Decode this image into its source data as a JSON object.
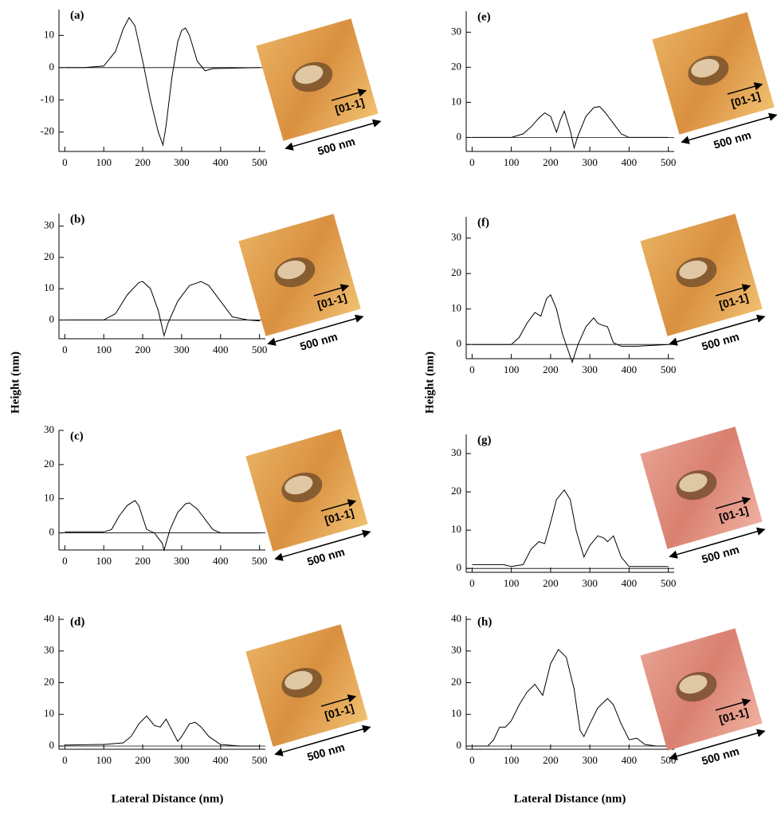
{
  "chart_data": [
    {
      "type": "line",
      "panel_label": "(a)",
      "direction_label": "[01-1]",
      "scale_label": "500 nm",
      "color": "#000000",
      "x": [
        0,
        50,
        100,
        130,
        150,
        165,
        180,
        200,
        220,
        240,
        252,
        260,
        275,
        290,
        300,
        310,
        320,
        340,
        360,
        380,
        420,
        500
      ],
      "values": [
        0,
        0,
        0.5,
        5,
        12,
        15.5,
        13,
        2,
        -10,
        -20,
        -24,
        -18,
        -3,
        8,
        11.5,
        12.3,
        10,
        2,
        -1,
        -0.3,
        -0.2,
        0
      ],
      "xlim": [
        -15,
        515
      ],
      "ylim": [
        -26,
        18
      ],
      "xticks": [
        0,
        100,
        200,
        300,
        400,
        500
      ],
      "yticks": [
        -20,
        -10,
        0,
        10
      ]
    },
    {
      "type": "line",
      "panel_label": "(b)",
      "direction_label": "[01-1]",
      "scale_label": "500 nm",
      "color": "#000000",
      "x": [
        0,
        100,
        130,
        160,
        190,
        200,
        220,
        240,
        255,
        265,
        290,
        320,
        350,
        370,
        400,
        430,
        470,
        500
      ],
      "values": [
        0,
        0,
        2,
        8,
        12,
        12.3,
        10,
        3,
        -5,
        -1,
        6,
        11,
        12.3,
        11,
        6,
        1,
        0,
        -0.3
      ],
      "xlim": [
        -15,
        515
      ],
      "ylim": [
        -6,
        34
      ],
      "xticks": [
        0,
        100,
        200,
        300,
        400,
        500
      ],
      "yticks": [
        0,
        10,
        20,
        30
      ]
    },
    {
      "type": "line",
      "panel_label": "(c)",
      "direction_label": "[01-1]",
      "scale_label": "500 nm",
      "color": "#000000",
      "x": [
        0,
        100,
        120,
        140,
        160,
        180,
        190,
        210,
        230,
        250,
        255,
        270,
        290,
        310,
        320,
        340,
        360,
        380,
        400,
        500
      ],
      "values": [
        0.3,
        0.3,
        1,
        5,
        8,
        9.5,
        8,
        1,
        0,
        -3,
        -5,
        1,
        6,
        8.5,
        8.8,
        7,
        4,
        1,
        0,
        0
      ],
      "xlim": [
        -15,
        515
      ],
      "ylim": [
        -5,
        30
      ],
      "xticks": [
        0,
        100,
        200,
        300,
        400,
        500
      ],
      "yticks": [
        0,
        10,
        20,
        30
      ]
    },
    {
      "type": "line",
      "panel_label": "(d)",
      "direction_label": "[01-1]",
      "scale_label": "500 nm",
      "color": "#000000",
      "x": [
        0,
        100,
        150,
        170,
        190,
        210,
        230,
        245,
        260,
        275,
        290,
        300,
        320,
        335,
        350,
        370,
        400,
        450,
        500
      ],
      "values": [
        0.3,
        0.5,
        1,
        3,
        7,
        9.5,
        6.5,
        6,
        8.5,
        5,
        1.5,
        3,
        7,
        7.5,
        6,
        3,
        0.5,
        0,
        0
      ],
      "xlim": [
        -15,
        515
      ],
      "ylim": [
        -1,
        41
      ],
      "xticks": [
        0,
        100,
        200,
        300,
        400,
        500
      ],
      "yticks": [
        0,
        10,
        20,
        30,
        40
      ]
    },
    {
      "type": "line",
      "panel_label": "(e)",
      "direction_label": "[01-1]",
      "scale_label": "500 nm",
      "color": "#000000",
      "x": [
        0,
        100,
        130,
        150,
        170,
        185,
        200,
        215,
        225,
        235,
        250,
        260,
        270,
        290,
        310,
        325,
        340,
        360,
        380,
        400,
        450,
        500
      ],
      "values": [
        0,
        0,
        1,
        3,
        5.5,
        7,
        6,
        1.5,
        5,
        7.5,
        2,
        -3,
        0.5,
        6,
        8.5,
        8.8,
        7,
        4,
        1,
        0,
        0,
        0
      ],
      "xlim": [
        -15,
        515
      ],
      "ylim": [
        -4,
        36
      ],
      "xticks": [
        0,
        100,
        200,
        300,
        400,
        500
      ],
      "yticks": [
        0,
        10,
        20,
        30
      ]
    },
    {
      "type": "line",
      "panel_label": "(f)",
      "direction_label": "[01-1]",
      "scale_label": "500 nm",
      "color": "#000000",
      "x": [
        0,
        100,
        120,
        140,
        160,
        175,
        190,
        200,
        215,
        230,
        255,
        270,
        290,
        310,
        320,
        330,
        345,
        360,
        380,
        420,
        500
      ],
      "values": [
        0,
        0,
        2,
        6,
        9,
        8,
        13,
        14,
        10,
        3,
        -5,
        0,
        5,
        7.5,
        6,
        5.5,
        5,
        0.5,
        -0.5,
        -0.5,
        0
      ],
      "xlim": [
        -15,
        515
      ],
      "ylim": [
        -4,
        36
      ],
      "xticks": [
        0,
        100,
        200,
        300,
        400,
        500
      ],
      "yticks": [
        0,
        10,
        20,
        30
      ]
    },
    {
      "type": "line",
      "panel_label": "(g)",
      "direction_label": "[01-1]",
      "scale_label": "500 nm",
      "color": "#000000",
      "x": [
        0,
        80,
        100,
        130,
        150,
        170,
        185,
        200,
        215,
        235,
        250,
        265,
        285,
        300,
        320,
        335,
        345,
        360,
        380,
        400,
        500
      ],
      "values": [
        1,
        1,
        0.5,
        1,
        5,
        7,
        6.5,
        12,
        18,
        20.5,
        18,
        10,
        3,
        6,
        8.5,
        8,
        7,
        8.5,
        3,
        0.5,
        0.5
      ],
      "xlim": [
        -15,
        515
      ],
      "ylim": [
        -1,
        35
      ],
      "xticks": [
        0,
        100,
        200,
        300,
        400,
        500
      ],
      "yticks": [
        0,
        10,
        20,
        30
      ]
    },
    {
      "type": "line",
      "panel_label": "(h)",
      "direction_label": "[01-1]",
      "scale_label": "500 nm",
      "color": "#000000",
      "x": [
        0,
        40,
        55,
        70,
        85,
        100,
        120,
        140,
        160,
        180,
        200,
        220,
        240,
        260,
        275,
        285,
        300,
        320,
        345,
        360,
        380,
        400,
        420,
        440,
        470,
        500
      ],
      "values": [
        0,
        0,
        2,
        6,
        6,
        8,
        13,
        17,
        19.5,
        16,
        26,
        30.5,
        28,
        18,
        5,
        3,
        7,
        12,
        15,
        13,
        7,
        2,
        2.5,
        0.5,
        0,
        0
      ],
      "xlim": [
        -15,
        515
      ],
      "ylim": [
        -1,
        41
      ],
      "xticks": [
        0,
        100,
        200,
        300,
        400,
        500
      ],
      "yticks": [
        0,
        10,
        20,
        30,
        40
      ]
    }
  ],
  "labels": {
    "ylabel_left": "Height (nm)",
    "ylabel_right": "Height (nm)",
    "xlabel_left": "Lateral Distance (nm)",
    "xlabel_right": "Lateral Distance (nm)"
  }
}
